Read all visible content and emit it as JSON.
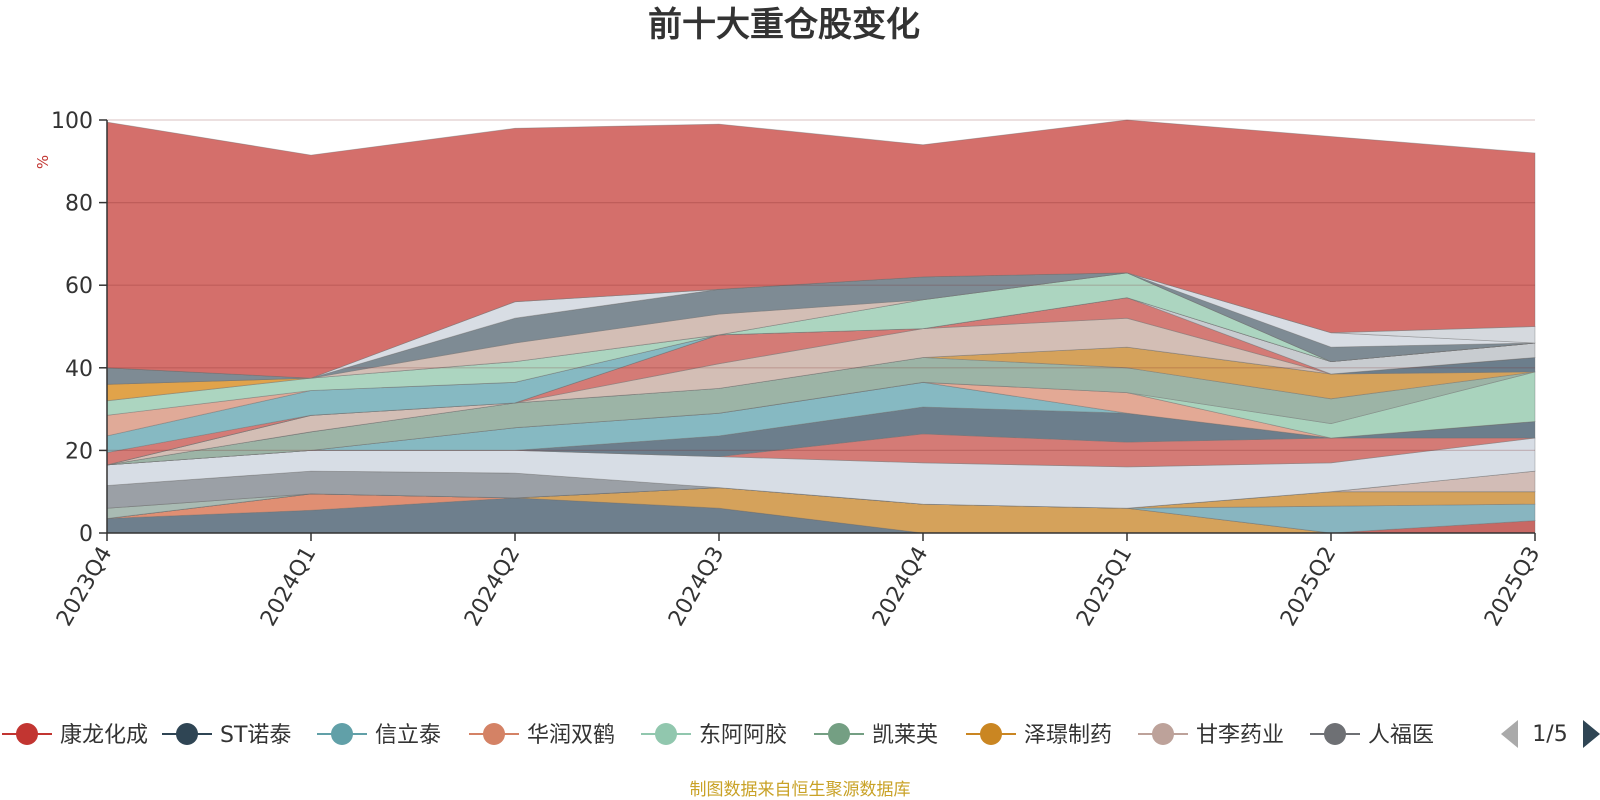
{
  "title": "前十大重仓股变化",
  "y_unit": "%",
  "source_note": "制图数据来自恒生聚源数据库",
  "legend_page": "1/5",
  "chart_data": {
    "type": "area",
    "stacked": true,
    "title": "前十大重仓股变化",
    "xlabel": "",
    "ylabel": "%",
    "ylim": [
      0,
      100
    ],
    "yticks": [
      0,
      20,
      40,
      60,
      80,
      100
    ],
    "grid": true,
    "legend_position": "bottom",
    "categories": [
      "2023Q4",
      "2024Q1",
      "2024Q2",
      "2024Q3",
      "2024Q4",
      "2025Q1",
      "2025Q2",
      "2025Q3"
    ],
    "layers": [
      {
        "color": "#6e7f8d",
        "values": [
          3.5,
          5.5,
          8.5,
          6,
          0,
          0,
          0,
          0
        ]
      },
      {
        "color": "#e08f73",
        "values": [
          0,
          4,
          0,
          0,
          0,
          0,
          0,
          0
        ]
      },
      {
        "color": "#d5a25b",
        "values": [
          0,
          0,
          0,
          5,
          7,
          6,
          0,
          0
        ]
      },
      {
        "color": "#c86864",
        "values": [
          0,
          0,
          0,
          0,
          0,
          0,
          0,
          3
        ]
      },
      {
        "color": "#88b5c0",
        "values": [
          0,
          0,
          0,
          0,
          0,
          0,
          6.5,
          4
        ]
      },
      {
        "color": "#d5a25b",
        "values": [
          0,
          0,
          0,
          0,
          0,
          0,
          3.5,
          3
        ]
      },
      {
        "color": "#a9bbb3",
        "values": [
          2.5,
          0,
          0,
          0,
          0,
          0,
          0,
          0
        ]
      },
      {
        "color": "#d2bcb6",
        "values": [
          0,
          0,
          0,
          0,
          0,
          0,
          0,
          5
        ]
      },
      {
        "color": "#9ba0a6",
        "values": [
          5.5,
          5.5,
          6,
          0,
          0,
          0,
          0,
          0
        ]
      },
      {
        "color": "#d7dde5",
        "values": [
          5,
          5,
          5.5,
          7.5,
          10,
          10,
          7,
          8
        ]
      },
      {
        "color": "#d47b76",
        "values": [
          0,
          0,
          0,
          0,
          7,
          6,
          6,
          0
        ]
      },
      {
        "color": "#6c7e8c",
        "values": [
          0,
          0,
          0,
          5,
          6.5,
          7,
          0,
          4
        ]
      },
      {
        "color": "#86b9c2",
        "values": [
          0,
          0,
          5.5,
          5.5,
          6,
          0,
          0,
          0
        ]
      },
      {
        "color": "#e3a995",
        "values": [
          0,
          0,
          0,
          0,
          0,
          5,
          0,
          0
        ]
      },
      {
        "color": "#a9d3bd",
        "values": [
          0,
          0,
          0,
          0,
          0,
          0,
          3.5,
          12
        ]
      },
      {
        "color": "#9cb4a6",
        "values": [
          0,
          4.5,
          6,
          6,
          6,
          6,
          6,
          0
        ]
      },
      {
        "color": "#d5a25b",
        "values": [
          0,
          0,
          0,
          0,
          0,
          5,
          6,
          0
        ]
      },
      {
        "color": "#6c7e8c",
        "values": [
          0,
          0,
          0,
          0,
          0,
          0,
          0,
          3.5
        ]
      },
      {
        "color": "#d3beb5",
        "values": [
          0,
          4,
          0,
          6,
          7,
          7,
          0,
          0
        ]
      },
      {
        "color": "#d47b76",
        "values": [
          0,
          0,
          0,
          7,
          0,
          5,
          0,
          0
        ]
      },
      {
        "color": "#c8ccd0",
        "values": [
          0,
          0,
          0,
          0,
          0,
          0,
          3,
          3.5
        ]
      },
      {
        "color": "#d47b76",
        "values": [
          3,
          0,
          0,
          0,
          0,
          0,
          0,
          0
        ]
      },
      {
        "color": "#86b9c2",
        "values": [
          4,
          6,
          5,
          0,
          0,
          0,
          0,
          0
        ]
      },
      {
        "color": "#e0aa98",
        "values": [
          5,
          0,
          0,
          0,
          0,
          0,
          0,
          0
        ]
      },
      {
        "color": "#acd5c0",
        "values": [
          3.5,
          3,
          5,
          0,
          7,
          6,
          0,
          0
        ]
      },
      {
        "color": "#e1a34a",
        "values": [
          4,
          0,
          0,
          0,
          0,
          0,
          0,
          0
        ]
      },
      {
        "color": "#d3beb5",
        "values": [
          0,
          0,
          4.5,
          5,
          0,
          0,
          0,
          0
        ]
      },
      {
        "color": "#7e8b94",
        "values": [
          4,
          0,
          6,
          6,
          5.5,
          0,
          3.5,
          0
        ]
      },
      {
        "color": "#d8dde4",
        "values": [
          0,
          0,
          4,
          0,
          0,
          0,
          3.5,
          0
        ]
      },
      {
        "color": "#d5d9de",
        "values": [
          0,
          0,
          0,
          0,
          0,
          0,
          0,
          4
        ]
      },
      {
        "color": "#d46f6b",
        "values": [
          59.5,
          54,
          42,
          40,
          32,
          37,
          47.5,
          42
        ]
      }
    ],
    "legend": [
      {
        "name": "康龙化成",
        "color": "#c23531"
      },
      {
        "name": "ST诺泰",
        "color": "#2f4554"
      },
      {
        "name": "信立泰",
        "color": "#61a0a8"
      },
      {
        "name": "华润双鹤",
        "color": "#d48265"
      },
      {
        "name": "东阿阿胶",
        "color": "#91c7ae"
      },
      {
        "name": "凯莱英",
        "color": "#749f83"
      },
      {
        "name": "泽璟制药",
        "color": "#ca8622"
      },
      {
        "name": "甘李药业",
        "color": "#bda29a"
      },
      {
        "name": "人福医",
        "color": "#6e7074"
      }
    ]
  }
}
